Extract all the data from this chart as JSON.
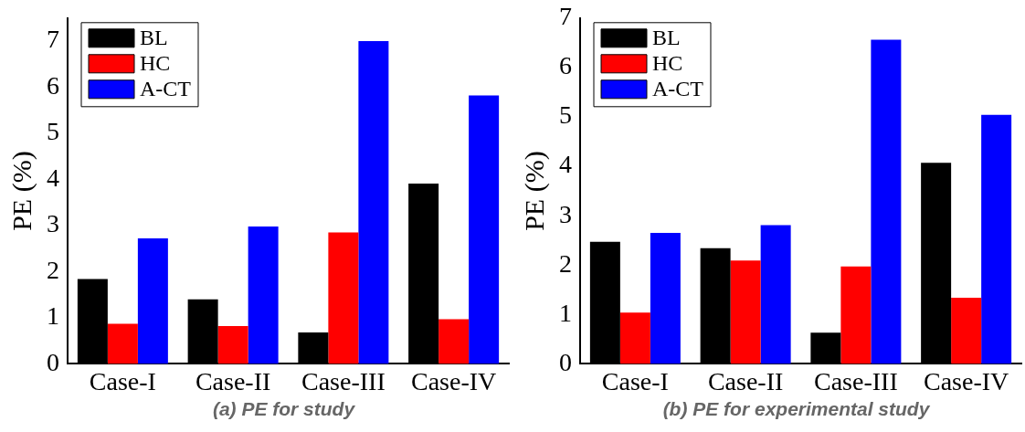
{
  "chart_data": [
    {
      "type": "bar",
      "ylabel": "PE (%)",
      "categories": [
        "Case-I",
        "Case-II",
        "Case-III",
        "Case-IV"
      ],
      "series": [
        {
          "name": "BL",
          "color": "#000000",
          "values": [
            1.84,
            1.4,
            0.68,
            3.91
          ]
        },
        {
          "name": "HC",
          "color": "#ff0000",
          "values": [
            0.87,
            0.82,
            2.85,
            0.97
          ]
        },
        {
          "name": "A-CT",
          "color": "#0000ff",
          "values": [
            2.72,
            2.98,
            7.0,
            5.82
          ]
        }
      ],
      "ylim": [
        0,
        7.5
      ],
      "yticks": [
        0,
        1,
        2,
        3,
        4,
        5,
        6,
        7
      ],
      "grid": false,
      "legend": "top left",
      "annotations": [
        "(a) PE for study"
      ]
    },
    {
      "type": "bar",
      "ylabel": "PE (%)",
      "categories": [
        "Case-I",
        "Case-II",
        "Case-III",
        "Case-IV"
      ],
      "series": [
        {
          "name": "BL",
          "color": "#000000",
          "values": [
            2.47,
            2.34,
            0.63,
            4.07
          ]
        },
        {
          "name": "HC",
          "color": "#ff0000",
          "values": [
            1.04,
            2.09,
            1.97,
            1.34
          ]
        },
        {
          "name": "A-CT",
          "color": "#0000ff",
          "values": [
            2.65,
            2.81,
            6.56,
            5.04
          ]
        }
      ],
      "ylim": [
        0,
        7
      ],
      "yticks": [
        0,
        1,
        2,
        3,
        4,
        5,
        6,
        7
      ],
      "grid": false,
      "legend": "top left",
      "annotations": [
        "(b) PE for experimental study"
      ]
    }
  ]
}
